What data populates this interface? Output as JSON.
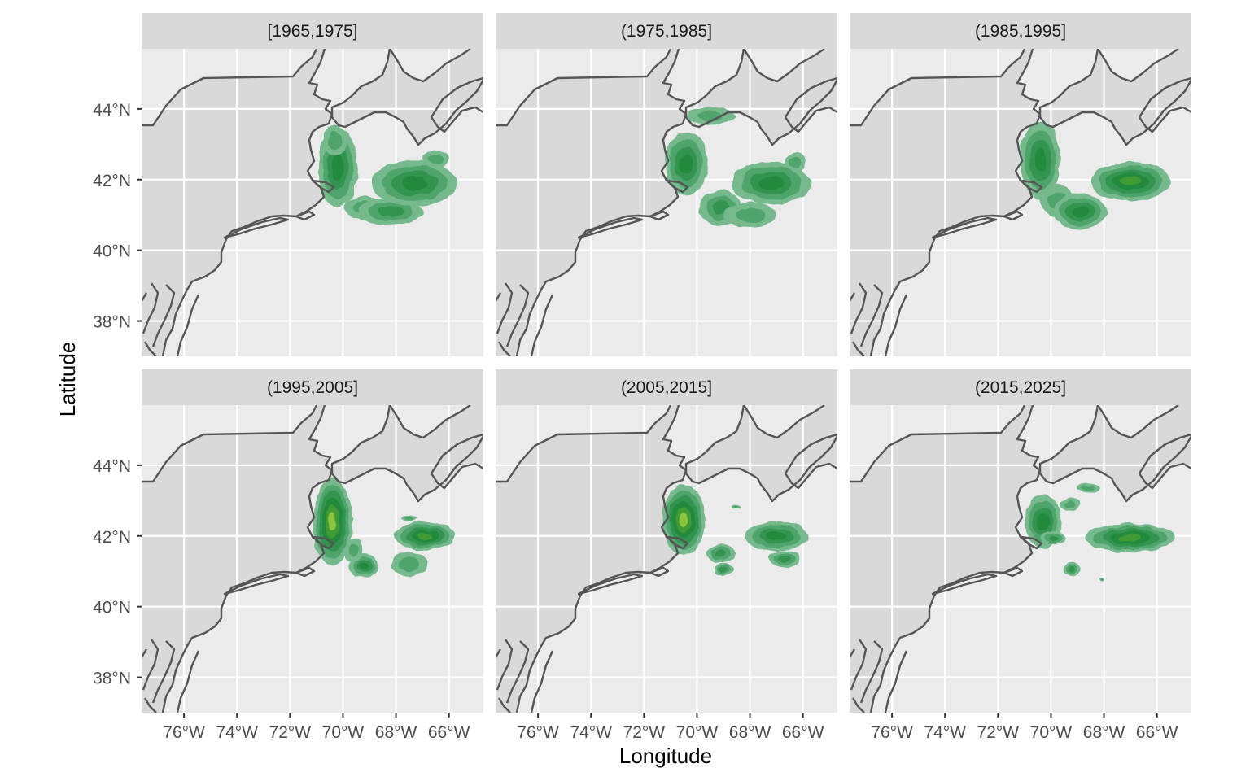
{
  "axes": {
    "x_title": "Longitude",
    "y_title": "Latitude",
    "x_ticks": [
      "76°W",
      "74°W",
      "72°W",
      "70°W",
      "68°W",
      "66°W"
    ],
    "y_ticks": [
      "44°N",
      "42°N",
      "40°N",
      "38°N"
    ]
  },
  "colors": {
    "panel_bg": "#ebebeb",
    "land": "#d9d9d9",
    "strip_bg": "#d9d9d9",
    "coastline": "#555555",
    "gridline": "#ffffff",
    "density_levels": [
      "#74b98d",
      "#4fa46c",
      "#339450",
      "#238a3e",
      "#3f9b35",
      "#8cc63f"
    ]
  },
  "panels": [
    {
      "label": "[1965,1975]",
      "blobs": [
        {
          "lon": -70.2,
          "lat": 42.35,
          "rlon": 0.75,
          "rlat": 1.15,
          "level": 3
        },
        {
          "lon": -70.3,
          "lat": 43.1,
          "rlon": 0.45,
          "rlat": 0.45,
          "level": 1
        },
        {
          "lon": -69.2,
          "lat": 41.2,
          "rlon": 0.7,
          "rlat": 0.35,
          "level": 1
        },
        {
          "lon": -68.2,
          "lat": 41.1,
          "rlon": 1.2,
          "rlat": 0.4,
          "level": 2
        },
        {
          "lon": -67.3,
          "lat": 41.9,
          "rlon": 1.6,
          "rlat": 0.65,
          "level": 3
        },
        {
          "lon": -66.5,
          "lat": 42.6,
          "rlon": 0.5,
          "rlat": 0.25,
          "level": 1
        }
      ]
    },
    {
      "label": "(1975,1985]",
      "blobs": [
        {
          "lon": -70.4,
          "lat": 42.45,
          "rlon": 0.8,
          "rlat": 0.9,
          "level": 3
        },
        {
          "lon": -69.5,
          "lat": 43.8,
          "rlon": 0.9,
          "rlat": 0.25,
          "level": 1
        },
        {
          "lon": -69.1,
          "lat": 41.2,
          "rlon": 0.8,
          "rlat": 0.5,
          "level": 2
        },
        {
          "lon": -68.0,
          "lat": 41.0,
          "rlon": 1.0,
          "rlat": 0.35,
          "level": 1
        },
        {
          "lon": -67.2,
          "lat": 41.9,
          "rlon": 1.5,
          "rlat": 0.6,
          "level": 3
        },
        {
          "lon": -66.3,
          "lat": 42.5,
          "rlon": 0.4,
          "rlat": 0.25,
          "level": 1
        }
      ]
    },
    {
      "label": "(1985,1995]",
      "blobs": [
        {
          "lon": -70.4,
          "lat": 42.55,
          "rlon": 0.75,
          "rlat": 1.1,
          "level": 3
        },
        {
          "lon": -69.8,
          "lat": 41.4,
          "rlon": 0.6,
          "rlat": 0.45,
          "level": 1
        },
        {
          "lon": -68.9,
          "lat": 41.1,
          "rlon": 1.0,
          "rlat": 0.5,
          "level": 3
        },
        {
          "lon": -67.0,
          "lat": 41.95,
          "rlon": 1.5,
          "rlat": 0.55,
          "level": 4
        }
      ]
    },
    {
      "label": "(1995,2005]",
      "blobs": [
        {
          "lon": -70.4,
          "lat": 42.4,
          "rlon": 0.75,
          "rlat": 1.25,
          "level": 5
        },
        {
          "lon": -69.2,
          "lat": 41.15,
          "rlon": 0.55,
          "rlat": 0.35,
          "level": 3
        },
        {
          "lon": -69.6,
          "lat": 41.6,
          "rlon": 0.35,
          "rlat": 0.3,
          "level": 1
        },
        {
          "lon": -66.9,
          "lat": 42.0,
          "rlon": 1.15,
          "rlat": 0.4,
          "level": 4
        },
        {
          "lon": -67.5,
          "lat": 41.2,
          "rlon": 0.7,
          "rlat": 0.35,
          "level": 1
        },
        {
          "lon": -67.5,
          "lat": 42.5,
          "rlon": 0.3,
          "rlat": 0.08,
          "level": 1
        }
      ]
    },
    {
      "label": "(2005,2015]",
      "blobs": [
        {
          "lon": -70.5,
          "lat": 42.45,
          "rlon": 0.8,
          "rlat": 1.0,
          "level": 5
        },
        {
          "lon": -69.1,
          "lat": 41.5,
          "rlon": 0.55,
          "rlat": 0.25,
          "level": 2
        },
        {
          "lon": -69.0,
          "lat": 41.05,
          "rlon": 0.4,
          "rlat": 0.18,
          "level": 2
        },
        {
          "lon": -67.0,
          "lat": 42.0,
          "rlon": 1.2,
          "rlat": 0.4,
          "level": 3
        },
        {
          "lon": -66.7,
          "lat": 41.35,
          "rlon": 0.6,
          "rlat": 0.25,
          "level": 2
        },
        {
          "lon": -68.5,
          "lat": 42.8,
          "rlon": 0.2,
          "rlat": 0.06,
          "level": 1
        }
      ]
    },
    {
      "label": "(2015,2025]",
      "blobs": [
        {
          "lon": -70.3,
          "lat": 42.4,
          "rlon": 0.7,
          "rlat": 0.75,
          "level": 3
        },
        {
          "lon": -69.3,
          "lat": 42.9,
          "rlon": 0.4,
          "rlat": 0.18,
          "level": 1
        },
        {
          "lon": -68.6,
          "lat": 43.35,
          "rlon": 0.45,
          "rlat": 0.12,
          "level": 1
        },
        {
          "lon": -69.9,
          "lat": 41.95,
          "rlon": 0.5,
          "rlat": 0.2,
          "level": 2
        },
        {
          "lon": -69.2,
          "lat": 41.05,
          "rlon": 0.35,
          "rlat": 0.18,
          "level": 2
        },
        {
          "lon": -67.0,
          "lat": 41.95,
          "rlon": 1.7,
          "rlat": 0.4,
          "level": 4
        },
        {
          "lon": -68.1,
          "lat": 40.75,
          "rlon": 0.1,
          "rlat": 0.05,
          "level": 1
        }
      ]
    }
  ]
}
